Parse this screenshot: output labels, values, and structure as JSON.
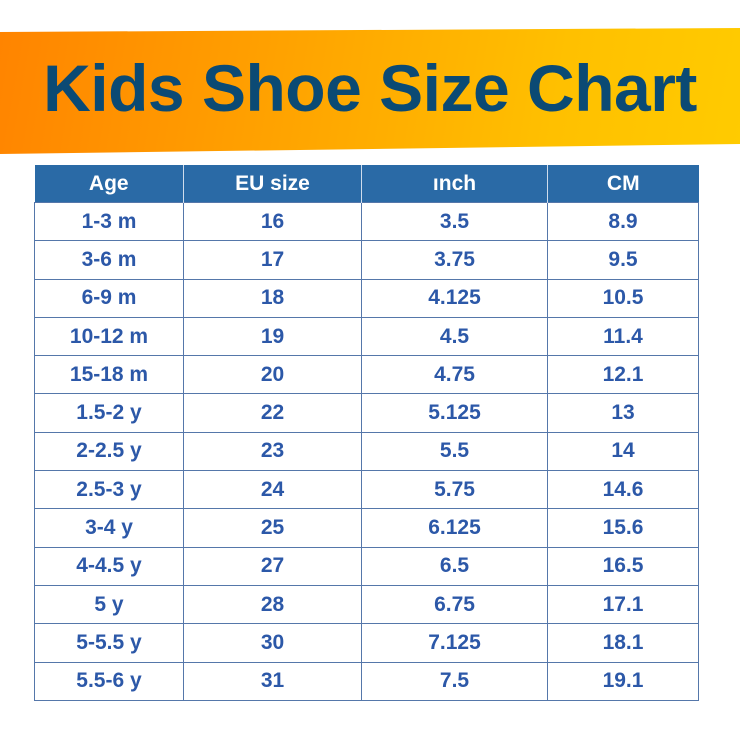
{
  "title": "Kids Shoe Size Chart",
  "colors": {
    "banner_start": "#ff8400",
    "banner_end": "#ffcb00",
    "title": "#0b4a74",
    "header_bg": "#2a6aa6",
    "cell_text": "#2c58a8"
  },
  "chart_data": {
    "type": "table",
    "title": "Kids Shoe Size Chart",
    "columns": [
      "Age",
      "EU size",
      "ınch",
      "CM"
    ],
    "rows": [
      [
        "1-3 m",
        "16",
        "3.5",
        "8.9"
      ],
      [
        "3-6 m",
        "17",
        "3.75",
        "9.5"
      ],
      [
        "6-9 m",
        "18",
        "4.125",
        "10.5"
      ],
      [
        "10-12 m",
        "19",
        "4.5",
        "11.4"
      ],
      [
        "15-18 m",
        "20",
        "4.75",
        "12.1"
      ],
      [
        "1.5-2 y",
        "22",
        "5.125",
        "13"
      ],
      [
        "2-2.5 y",
        "23",
        "5.5",
        "14"
      ],
      [
        "2.5-3 y",
        "24",
        "5.75",
        "14.6"
      ],
      [
        "3-4 y",
        "25",
        "6.125",
        "15.6"
      ],
      [
        "4-4.5 y",
        "27",
        "6.5",
        "16.5"
      ],
      [
        "5 y",
        "28",
        "6.75",
        "17.1"
      ],
      [
        "5-5.5 y",
        "30",
        "7.125",
        "18.1"
      ],
      [
        "5.5-6 y",
        "31",
        "7.5",
        "19.1"
      ]
    ]
  }
}
